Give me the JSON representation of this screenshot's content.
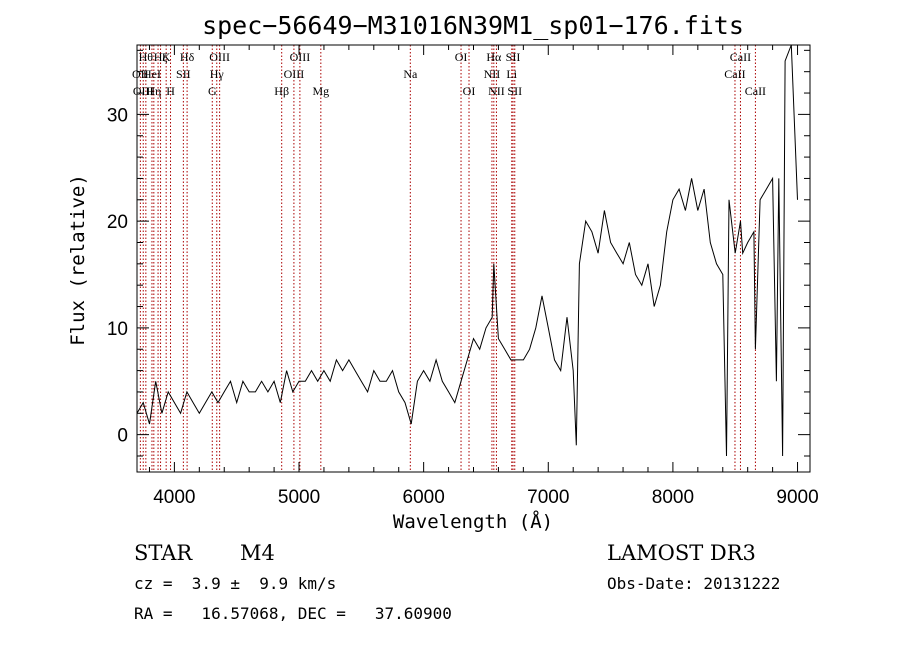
{
  "chart_data": {
    "type": "line",
    "title": "spec−56649−M31016N39M1_sp01−176.fits",
    "xlabel": "Wavelength (Å)",
    "ylabel": "Flux (relative)",
    "xlim": [
      3700,
      9100
    ],
    "ylim": [
      -3.5,
      36.5
    ],
    "x_ticks": [
      4000,
      5000,
      6000,
      7000,
      8000,
      9000
    ],
    "y_ticks": [
      0,
      10,
      20,
      30
    ],
    "x_tick_labels": [
      "4000",
      "5000",
      "6000",
      "7000",
      "8000",
      "9000"
    ],
    "y_tick_labels": [
      "0",
      "10",
      "20",
      "30"
    ],
    "series": [
      {
        "name": "Flux",
        "color": "#000000",
        "x": [
          3700,
          3750,
          3800,
          3850,
          3900,
          3950,
          4000,
          4050,
          4100,
          4150,
          4200,
          4250,
          4300,
          4350,
          4400,
          4450,
          4500,
          4550,
          4600,
          4650,
          4700,
          4750,
          4800,
          4850,
          4900,
          4950,
          5000,
          5050,
          5100,
          5150,
          5200,
          5250,
          5300,
          5350,
          5400,
          5450,
          5500,
          5550,
          5600,
          5650,
          5700,
          5750,
          5800,
          5850,
          5900,
          5950,
          6000,
          6050,
          6100,
          6150,
          6200,
          6250,
          6300,
          6350,
          6400,
          6450,
          6500,
          6550,
          6563,
          6600,
          6650,
          6700,
          6750,
          6800,
          6850,
          6900,
          6950,
          7000,
          7050,
          7100,
          7150,
          7200,
          7225,
          7250,
          7300,
          7350,
          7400,
          7450,
          7500,
          7550,
          7600,
          7650,
          7700,
          7750,
          7800,
          7850,
          7900,
          7950,
          8000,
          8050,
          8100,
          8150,
          8200,
          8250,
          8300,
          8350,
          8400,
          8430,
          8450,
          8500,
          8542,
          8560,
          8600,
          8650,
          8662,
          8700,
          8750,
          8800,
          8830,
          8850,
          8880,
          8900,
          8950,
          9000
        ],
        "y": [
          2,
          3,
          1,
          5,
          2,
          4,
          3,
          2,
          4,
          3,
          2,
          3,
          4,
          3,
          4,
          5,
          3,
          5,
          4,
          4,
          5,
          4,
          5,
          3,
          6,
          4,
          5,
          5,
          6,
          5,
          6,
          5,
          7,
          6,
          7,
          6,
          5,
          4,
          6,
          5,
          5,
          6,
          4,
          3,
          1,
          5,
          6,
          5,
          7,
          5,
          4,
          3,
          5,
          7,
          9,
          8,
          10,
          11,
          16,
          9,
          8,
          7,
          7,
          7,
          8,
          10,
          13,
          10,
          7,
          6,
          11,
          6,
          -1,
          16,
          20,
          19,
          17,
          21,
          18,
          17,
          16,
          18,
          15,
          14,
          16,
          12,
          14,
          19,
          22,
          23,
          21,
          24,
          21,
          23,
          18,
          16,
          15,
          -2,
          22,
          17,
          20,
          17,
          18,
          19,
          8,
          22,
          23,
          24,
          5,
          24,
          -2,
          35,
          37,
          22
        ]
      }
    ],
    "spectral_lines": [
      {
        "x": 3727,
        "label": "OII",
        "row": 2,
        "color": "#aa0000"
      },
      {
        "x": 3750,
        "label": "OIII",
        "row": 3,
        "color": "#aa0000"
      },
      {
        "x": 3771,
        "label": "Hθ",
        "row": 1,
        "color": "#aa0000"
      },
      {
        "x": 3820,
        "label": "HeI",
        "row": 2,
        "color": "#aa0000"
      },
      {
        "x": 3835,
        "label": "Hη",
        "row": 3,
        "color": "#aa0000"
      },
      {
        "x": 3869,
        "label": "",
        "row": 0,
        "color": "#aa0000"
      },
      {
        "x": 3889,
        "label": "Hζ",
        "row": 1,
        "color": "#aa0000"
      },
      {
        "x": 3934,
        "label": "K",
        "row": 1,
        "color": "#aa0000"
      },
      {
        "x": 3969,
        "label": "H",
        "row": 3,
        "color": "#aa0000"
      },
      {
        "x": 4072,
        "label": "SII",
        "row": 2,
        "color": "#aa0000"
      },
      {
        "x": 4102,
        "label": "Hδ",
        "row": 1,
        "color": "#aa0000"
      },
      {
        "x": 4304,
        "label": "G",
        "row": 3,
        "color": "#aa0000"
      },
      {
        "x": 4340,
        "label": "Hγ",
        "row": 2,
        "color": "#aa0000"
      },
      {
        "x": 4363,
        "label": "OIII",
        "row": 1,
        "color": "#aa0000"
      },
      {
        "x": 4861,
        "label": "Hβ",
        "row": 3,
        "color": "#aa0000"
      },
      {
        "x": 4959,
        "label": "OIII",
        "row": 2,
        "color": "#aa0000"
      },
      {
        "x": 5007,
        "label": "OIII",
        "row": 1,
        "color": "#aa0000"
      },
      {
        "x": 5175,
        "label": "Mg",
        "row": 3,
        "color": "#aa0000"
      },
      {
        "x": 5893,
        "label": "Na",
        "row": 2,
        "color": "#aa0000"
      },
      {
        "x": 6300,
        "label": "OI",
        "row": 1,
        "color": "#aa0000"
      },
      {
        "x": 6364,
        "label": "OI",
        "row": 3,
        "color": "#aa0000"
      },
      {
        "x": 6548,
        "label": "NII",
        "row": 2,
        "color": "#aa0000"
      },
      {
        "x": 6563,
        "label": "Hα",
        "row": 1,
        "color": "#aa0000"
      },
      {
        "x": 6584,
        "label": "NII",
        "row": 3,
        "color": "#aa0000"
      },
      {
        "x": 6707,
        "label": "Li",
        "row": 2,
        "color": "#aa0000"
      },
      {
        "x": 6717,
        "label": "SII",
        "row": 1,
        "color": "#aa0000"
      },
      {
        "x": 6731,
        "label": "SII",
        "row": 3,
        "color": "#aa0000"
      },
      {
        "x": 8498,
        "label": "CaII",
        "row": 2,
        "color": "#aa0000"
      },
      {
        "x": 8542,
        "label": "CaII",
        "row": 1,
        "color": "#aa0000"
      },
      {
        "x": 8662,
        "label": "CaII",
        "row": 3,
        "color": "#aa0000"
      }
    ]
  },
  "info": {
    "object_class": "STAR",
    "subclass": "M4",
    "survey": "LAMOST DR3",
    "redshift": "cz =  3.9 ±  9.9 km/s",
    "obs_date": "Obs-Date: 20131222",
    "coords": "RA =   16.57068, DEC =   37.60900"
  }
}
